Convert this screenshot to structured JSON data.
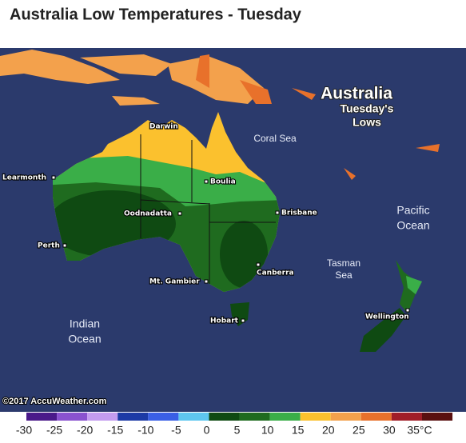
{
  "header": {
    "title": "Australia Low Temperatures - Tuesday"
  },
  "map": {
    "heading": "Australia",
    "subheading": [
      "Tuesday's",
      "Lows"
    ],
    "water_labels": [
      [
        "Coral Sea"
      ],
      [
        "Pacific",
        "Ocean"
      ],
      [
        "Tasman",
        "Sea"
      ],
      [
        "Indian",
        "Ocean"
      ]
    ],
    "cities": [
      "Darwin",
      "Learmonth",
      "Boulia",
      "Oodnadatta",
      "Brisbane",
      "Perth",
      "Canberra",
      "Mt. Gambier",
      "Hobart",
      "Wellington"
    ],
    "copyright": "©2017 AccuWeather.com"
  },
  "legend": {
    "ticks": [
      -30,
      -25,
      -20,
      -15,
      -10,
      -5,
      0,
      5,
      10,
      15,
      20,
      25,
      30,
      {
        "value": 35,
        "label": "35°C"
      }
    ],
    "colors": [
      "#4a1a8a",
      "#8a52cf",
      "#c49cef",
      "#1c3aa6",
      "#3a5fe6",
      "#5ec6ef",
      "#0f4a12",
      "#1f6b1f",
      "#3aae48",
      "#fbc12e",
      "#f3a14c",
      "#e8712b",
      "#a11e28",
      "#5a1010"
    ]
  }
}
